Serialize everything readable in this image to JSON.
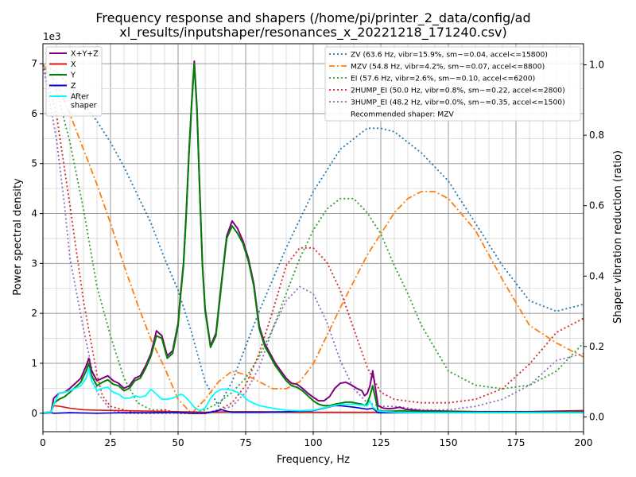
{
  "chart_data": {
    "type": "line",
    "title_lines": [
      "Frequency response and shapers (/home/pi/printer_2_data/config/ad",
      "xl_results/inputshaper/resonances_x_20221218_171240.csv)"
    ],
    "xlabel": "Frequency, Hz",
    "ylabel": "Power spectral density",
    "y2label": "Shaper vibration reduction (ratio)",
    "y_multiplier_label": "1e3",
    "xlim": [
      0,
      200
    ],
    "ylim": [
      -0.37,
      7.4
    ],
    "y2lim": [
      -0.042,
      1.06
    ],
    "xticks": [
      0,
      25,
      50,
      75,
      100,
      125,
      150,
      175,
      200
    ],
    "yticks": [
      0,
      1,
      2,
      3,
      4,
      5,
      6,
      7
    ],
    "y2ticks": [
      0.0,
      0.2,
      0.4,
      0.6,
      0.8,
      1.0
    ],
    "grid": true,
    "legend_left": {
      "placement": "top-left",
      "entries": [
        {
          "label": "X+Y+Z",
          "color": "#800080"
        },
        {
          "label": "X",
          "color": "#dd1111"
        },
        {
          "label": "Y",
          "color": "#008000"
        },
        {
          "label": "Z",
          "color": "#0000cc"
        },
        {
          "label": "After\nshaper",
          "color": "#00ffff"
        }
      ]
    },
    "legend_right": {
      "placement": "top-right",
      "entries": [
        {
          "label": "ZV (63.6 Hz, vibr=15.9%, sm~=0.04, accel<=15800)",
          "color": "#1f77b4",
          "style": "dotted"
        },
        {
          "label": "MZV (54.8 Hz, vibr=4.2%, sm~=0.07, accel<=8800)",
          "color": "#ff7f0e",
          "style": "dashdot"
        },
        {
          "label": "EI (57.6 Hz, vibr=2.6%, sm~=0.10, accel<=6200)",
          "color": "#2ca02c",
          "style": "dotted"
        },
        {
          "label": "2HUMP_EI (50.0 Hz, vibr=0.8%, sm~=0.22, accel<=2800)",
          "color": "#d62728",
          "style": "dotted"
        },
        {
          "label": "3HUMP_EI (48.2 Hz, vibr=0.0%, sm~=0.35, accel<=1500)",
          "color": "#9467bd",
          "style": "dotted"
        },
        {
          "label": "Recommended shaper: MZV",
          "color": null,
          "style": "none"
        }
      ]
    },
    "psd_series": [
      {
        "name": "X+Y+Z",
        "color": "#800080",
        "width": 2,
        "x": [
          0,
          3,
          4,
          6,
          8,
          10,
          12,
          14,
          16,
          17,
          18,
          20,
          22,
          24,
          26,
          28,
          30,
          32,
          34,
          36,
          38,
          40,
          42,
          44,
          46,
          48,
          50,
          51,
          52,
          53,
          54,
          55,
          56,
          57,
          58,
          59,
          60,
          62,
          64,
          66,
          68,
          70,
          72,
          74,
          76,
          78,
          80,
          82,
          84,
          86,
          88,
          90,
          92,
          94,
          96,
          98,
          100,
          102,
          104,
          106,
          108,
          110,
          112,
          114,
          116,
          118,
          119,
          120,
          121,
          122,
          124,
          126,
          128,
          130,
          132,
          134,
          136,
          140,
          150,
          160,
          170,
          180,
          190,
          200
        ],
        "y": [
          0.01,
          0.02,
          0.3,
          0.4,
          0.42,
          0.5,
          0.6,
          0.7,
          0.95,
          1.1,
          0.85,
          0.65,
          0.7,
          0.75,
          0.65,
          0.6,
          0.5,
          0.55,
          0.7,
          0.75,
          0.95,
          1.2,
          1.65,
          1.55,
          1.15,
          1.25,
          1.8,
          2.45,
          3.0,
          4.0,
          5.2,
          6.2,
          7.05,
          6.1,
          4.5,
          3.0,
          2.1,
          1.35,
          1.6,
          2.6,
          3.55,
          3.85,
          3.7,
          3.45,
          3.1,
          2.6,
          1.75,
          1.4,
          1.2,
          1.0,
          0.85,
          0.7,
          0.6,
          0.58,
          0.5,
          0.4,
          0.32,
          0.25,
          0.25,
          0.33,
          0.5,
          0.6,
          0.62,
          0.57,
          0.5,
          0.45,
          0.35,
          0.4,
          0.55,
          0.85,
          0.15,
          0.1,
          0.09,
          0.1,
          0.12,
          0.08,
          0.07,
          0.05,
          0.04,
          0.03,
          0.03,
          0.03,
          0.04,
          0.05
        ]
      },
      {
        "name": "X",
        "color": "#dd1111",
        "width": 1.6,
        "x": [
          0,
          3,
          4,
          6,
          8,
          10,
          15,
          20,
          30,
          40,
          50,
          55,
          60,
          70,
          80,
          100,
          110,
          120,
          130,
          150,
          180,
          190,
          200
        ],
        "y": [
          0.01,
          0.02,
          0.15,
          0.14,
          0.12,
          0.1,
          0.07,
          0.06,
          0.05,
          0.04,
          0.03,
          0.025,
          0.02,
          0.03,
          0.03,
          0.02,
          0.02,
          0.02,
          0.02,
          0.02,
          0.02,
          0.03,
          0.04
        ]
      },
      {
        "name": "Y",
        "color": "#008000",
        "width": 2,
        "x": [
          0,
          3,
          4,
          6,
          8,
          10,
          12,
          14,
          16,
          17,
          18,
          20,
          22,
          24,
          26,
          28,
          30,
          32,
          34,
          36,
          38,
          40,
          42,
          44,
          46,
          48,
          50,
          51,
          52,
          53,
          54,
          55,
          56,
          57,
          58,
          59,
          60,
          62,
          64,
          66,
          68,
          70,
          72,
          74,
          76,
          78,
          80,
          82,
          84,
          86,
          88,
          90,
          92,
          94,
          96,
          98,
          100,
          102,
          104,
          106,
          108,
          110,
          112,
          114,
          116,
          118,
          119,
          120,
          121,
          122,
          124,
          126,
          128,
          130,
          132,
          134,
          136,
          140,
          150,
          160,
          170,
          180,
          190,
          200
        ],
        "y": [
          0.01,
          0.02,
          0.2,
          0.28,
          0.33,
          0.42,
          0.52,
          0.62,
          0.85,
          1.0,
          0.75,
          0.55,
          0.62,
          0.67,
          0.58,
          0.55,
          0.45,
          0.5,
          0.65,
          0.7,
          0.9,
          1.15,
          1.55,
          1.5,
          1.1,
          1.2,
          1.75,
          2.4,
          2.95,
          3.95,
          5.15,
          6.15,
          7.0,
          6.05,
          4.45,
          2.95,
          2.05,
          1.32,
          1.55,
          2.55,
          3.5,
          3.75,
          3.6,
          3.4,
          3.05,
          2.55,
          1.7,
          1.35,
          1.15,
          0.95,
          0.8,
          0.65,
          0.55,
          0.52,
          0.45,
          0.35,
          0.25,
          0.18,
          0.15,
          0.15,
          0.18,
          0.2,
          0.22,
          0.22,
          0.2,
          0.18,
          0.15,
          0.2,
          0.35,
          0.55,
          0.05,
          0.04,
          0.04,
          0.04,
          0.05,
          0.04,
          0.04,
          0.03,
          0.03,
          0.02,
          0.02,
          0.02,
          0.02,
          0.02
        ]
      },
      {
        "name": "Z",
        "color": "#0000cc",
        "width": 1.6,
        "x": [
          0,
          3,
          4,
          10,
          20,
          30,
          40,
          50,
          55,
          60,
          64,
          66,
          68,
          70,
          80,
          90,
          100,
          104,
          108,
          110,
          115,
          120,
          122,
          124,
          130,
          140,
          160,
          200
        ],
        "y": [
          0.0,
          0.01,
          0.0,
          0.01,
          0.0,
          0.01,
          0.01,
          0.02,
          0.0,
          0.0,
          0.04,
          0.07,
          0.04,
          0.02,
          0.02,
          0.03,
          0.05,
          0.1,
          0.15,
          0.15,
          0.12,
          0.08,
          0.1,
          0.01,
          0.01,
          0.01,
          0.01,
          0.01
        ]
      },
      {
        "name": "After\nshaper",
        "color": "#00ffff",
        "width": 1.8,
        "x": [
          0,
          3,
          4,
          6,
          8,
          10,
          12,
          14,
          16,
          17,
          18,
          20,
          22,
          24,
          26,
          28,
          30,
          32,
          34,
          36,
          38,
          40,
          42,
          44,
          46,
          48,
          50,
          51,
          52,
          54,
          56,
          58,
          60,
          62,
          64,
          66,
          68,
          70,
          72,
          74,
          76,
          80,
          85,
          90,
          95,
          100,
          105,
          110,
          115,
          120,
          121,
          122,
          124,
          130,
          140,
          160,
          200
        ],
        "y": [
          0.01,
          0.02,
          0.18,
          0.4,
          0.42,
          0.45,
          0.5,
          0.55,
          0.7,
          0.9,
          0.65,
          0.45,
          0.5,
          0.52,
          0.42,
          0.38,
          0.3,
          0.3,
          0.35,
          0.32,
          0.35,
          0.48,
          0.38,
          0.28,
          0.28,
          0.3,
          0.35,
          0.38,
          0.36,
          0.25,
          0.12,
          0.05,
          0.1,
          0.3,
          0.42,
          0.48,
          0.48,
          0.46,
          0.42,
          0.35,
          0.25,
          0.15,
          0.1,
          0.06,
          0.05,
          0.06,
          0.12,
          0.18,
          0.18,
          0.15,
          0.25,
          0.12,
          0.04,
          0.02,
          0.01,
          0.01,
          0.01
        ]
      }
    ],
    "shaper_series": [
      {
        "name": "ZV",
        "color": "#1f77b4",
        "dash": "2,3",
        "x": [
          0,
          5,
          10,
          15,
          20,
          25,
          30,
          35,
          40,
          45,
          50,
          55,
          60,
          65,
          70,
          75,
          80,
          90,
          100,
          110,
          120,
          125,
          130,
          140,
          150,
          160,
          170,
          180,
          190,
          200
        ],
        "y": [
          1.0,
          0.98,
          0.94,
          0.89,
          0.84,
          0.78,
          0.71,
          0.63,
          0.55,
          0.45,
          0.36,
          0.24,
          0.1,
          0.03,
          0.1,
          0.2,
          0.3,
          0.48,
          0.64,
          0.76,
          0.82,
          0.82,
          0.81,
          0.75,
          0.67,
          0.55,
          0.43,
          0.33,
          0.3,
          0.32
        ]
      },
      {
        "name": "MZV",
        "color": "#ff7f0e",
        "dash": "8,3,2,3",
        "x": [
          0,
          5,
          10,
          15,
          20,
          25,
          30,
          35,
          40,
          45,
          50,
          55,
          60,
          65,
          70,
          75,
          80,
          85,
          90,
          95,
          100,
          110,
          120,
          130,
          135,
          140,
          145,
          150,
          160,
          170,
          180,
          190,
          200
        ],
        "y": [
          1.0,
          0.95,
          0.86,
          0.76,
          0.66,
          0.55,
          0.43,
          0.32,
          0.22,
          0.14,
          0.05,
          0.01,
          0.05,
          0.1,
          0.13,
          0.12,
          0.1,
          0.08,
          0.08,
          0.1,
          0.15,
          0.31,
          0.46,
          0.58,
          0.62,
          0.64,
          0.64,
          0.62,
          0.53,
          0.39,
          0.26,
          0.21,
          0.17
        ]
      },
      {
        "name": "EI",
        "color": "#2ca02c",
        "dash": "2,3",
        "x": [
          0,
          5,
          10,
          15,
          20,
          25,
          30,
          35,
          40,
          45,
          50,
          55,
          60,
          65,
          70,
          75,
          80,
          85,
          90,
          95,
          100,
          105,
          110,
          115,
          120,
          125,
          130,
          135,
          140,
          150,
          160,
          170,
          180,
          190,
          200
        ],
        "y": [
          1.0,
          0.93,
          0.78,
          0.59,
          0.37,
          0.23,
          0.11,
          0.04,
          0.02,
          0.02,
          0.01,
          0.01,
          0.02,
          0.04,
          0.07,
          0.11,
          0.17,
          0.25,
          0.35,
          0.45,
          0.53,
          0.59,
          0.62,
          0.62,
          0.58,
          0.52,
          0.43,
          0.35,
          0.26,
          0.13,
          0.09,
          0.08,
          0.09,
          0.13,
          0.21
        ]
      },
      {
        "name": "2HUMP_EI",
        "color": "#d62728",
        "dash": "2,3",
        "x": [
          0,
          5,
          10,
          15,
          20,
          22,
          25,
          30,
          35,
          40,
          45,
          50,
          55,
          60,
          65,
          70,
          75,
          80,
          85,
          90,
          95,
          100,
          105,
          110,
          115,
          120,
          125,
          130,
          140,
          150,
          160,
          170,
          180,
          190,
          200
        ],
        "y": [
          1.0,
          0.86,
          0.6,
          0.33,
          0.12,
          0.06,
          0.03,
          0.02,
          0.01,
          0.01,
          0.02,
          0.01,
          0.01,
          0.01,
          0.02,
          0.04,
          0.09,
          0.18,
          0.3,
          0.43,
          0.48,
          0.48,
          0.44,
          0.36,
          0.25,
          0.14,
          0.07,
          0.05,
          0.04,
          0.04,
          0.05,
          0.08,
          0.15,
          0.24,
          0.28
        ]
      },
      {
        "name": "3HUMP_EI",
        "color": "#9467bd",
        "dash": "2,3",
        "x": [
          0,
          5,
          8,
          10,
          15,
          20,
          25,
          30,
          35,
          40,
          50,
          60,
          70,
          75,
          80,
          85,
          90,
          95,
          100,
          105,
          110,
          115,
          120,
          125,
          130,
          140,
          150,
          160,
          170,
          180,
          190,
          200
        ],
        "y": [
          1.0,
          0.79,
          0.6,
          0.45,
          0.25,
          0.07,
          0.02,
          0.01,
          0.01,
          0.01,
          0.01,
          0.01,
          0.03,
          0.07,
          0.14,
          0.25,
          0.33,
          0.37,
          0.35,
          0.27,
          0.16,
          0.08,
          0.04,
          0.03,
          0.03,
          0.02,
          0.02,
          0.03,
          0.05,
          0.09,
          0.16,
          0.18
        ]
      }
    ]
  }
}
